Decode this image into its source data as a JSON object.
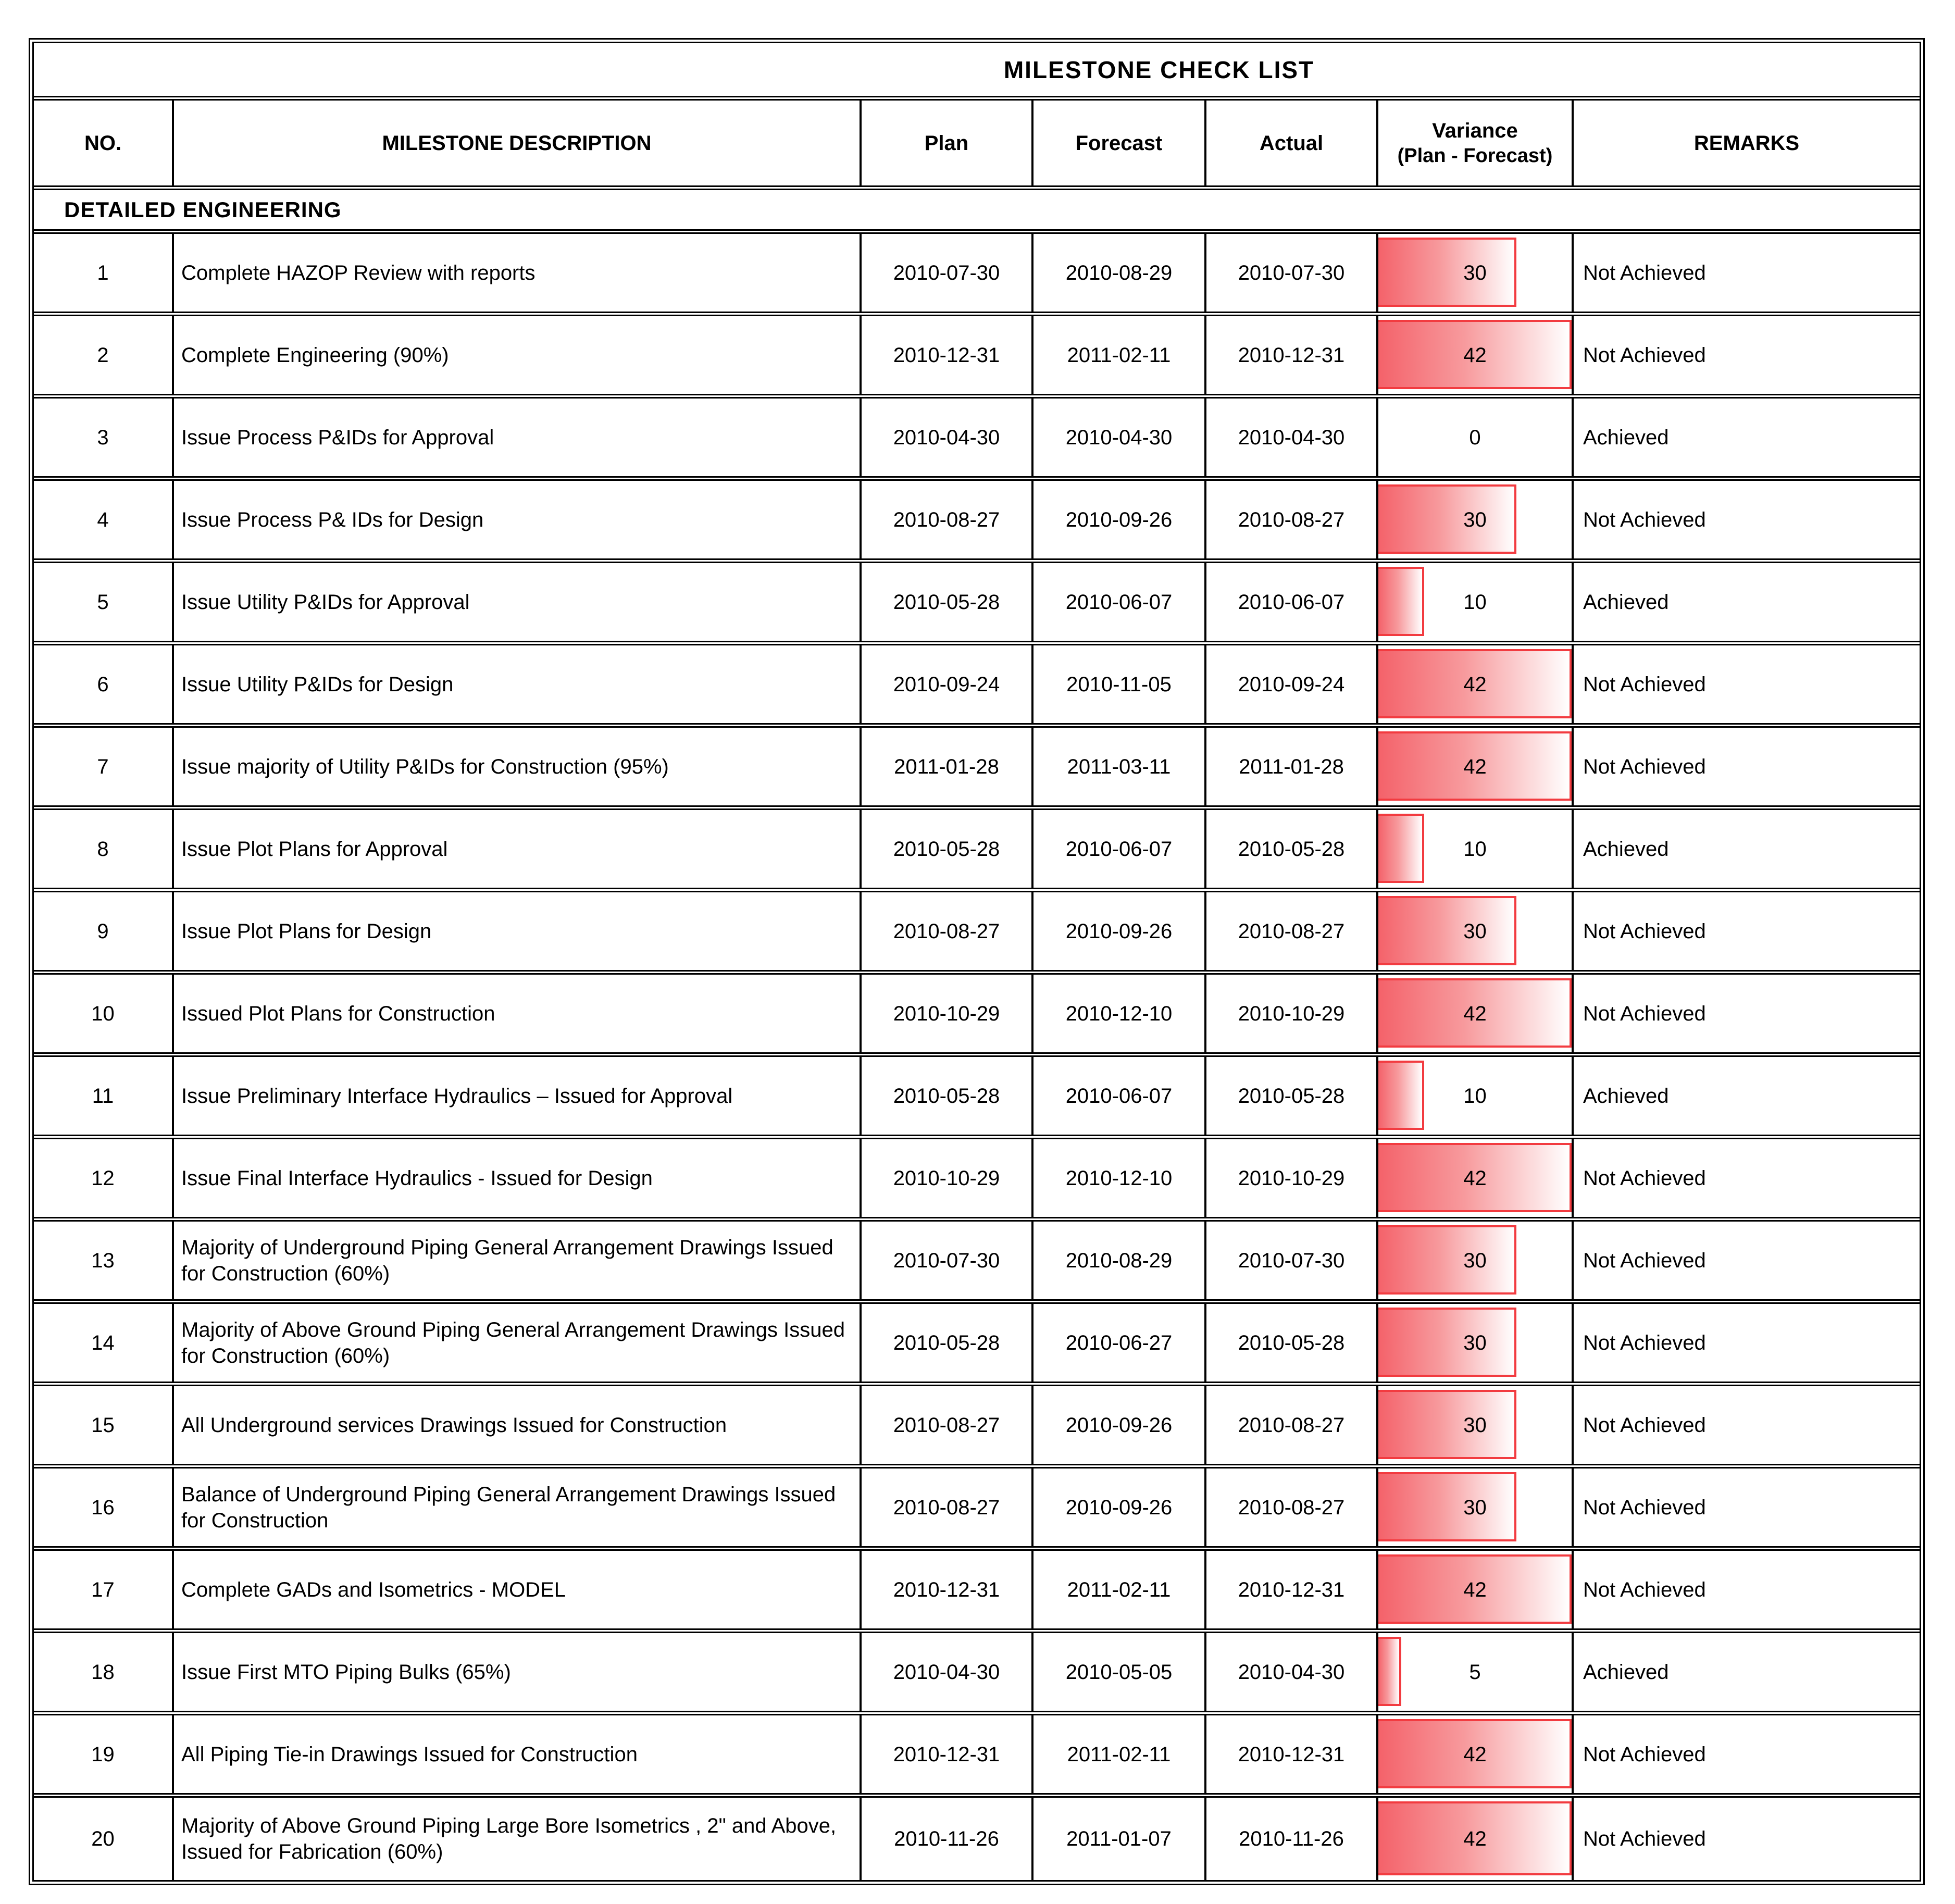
{
  "title": "MILESTONE CHECK LIST",
  "columns": {
    "no": "NO.",
    "description": "MILESTONE DESCRIPTION",
    "plan": "Plan",
    "forecast": "Forecast",
    "actual": "Actual",
    "variance_line1": "Variance",
    "variance_line2": "(Plan - Forecast)",
    "remarks": "REMARKS"
  },
  "section": {
    "label": "DETAILED ENGINEERING"
  },
  "colors": {
    "bar_fill_red": "#f4626a",
    "bar_border_red": "#f23b40",
    "border_black": "#000000"
  },
  "rows": [
    {
      "no": "1",
      "description": "Complete HAZOP Review with reports",
      "plan": "2010-07-30",
      "forecast": "2010-08-29",
      "actual": "2010-07-30",
      "variance": 30,
      "remarks": "Not Achieved"
    },
    {
      "no": "2",
      "description": "Complete Engineering (90%)",
      "plan": "2010-12-31",
      "forecast": "2011-02-11",
      "actual": "2010-12-31",
      "variance": 42,
      "remarks": "Not Achieved"
    },
    {
      "no": "3",
      "description": "Issue Process P&IDs for Approval",
      "plan": "2010-04-30",
      "forecast": "2010-04-30",
      "actual": "2010-04-30",
      "variance": 0,
      "remarks": "Achieved"
    },
    {
      "no": "4",
      "description": "Issue Process P& IDs for Design",
      "plan": "2010-08-27",
      "forecast": "2010-09-26",
      "actual": "2010-08-27",
      "variance": 30,
      "remarks": "Not Achieved"
    },
    {
      "no": "5",
      "description": "Issue Utility P&IDs for Approval",
      "plan": "2010-05-28",
      "forecast": "2010-06-07",
      "actual": "2010-06-07",
      "variance": 10,
      "remarks": "Achieved"
    },
    {
      "no": "6",
      "description": "Issue Utility P&IDs for Design",
      "plan": "2010-09-24",
      "forecast": "2010-11-05",
      "actual": "2010-09-24",
      "variance": 42,
      "remarks": "Not Achieved"
    },
    {
      "no": "7",
      "description": "Issue majority of Utility P&IDs for Construction (95%)",
      "plan": "2011-01-28",
      "forecast": "2011-03-11",
      "actual": "2011-01-28",
      "variance": 42,
      "remarks": "Not Achieved"
    },
    {
      "no": "8",
      "description": "Issue Plot Plans for Approval",
      "plan": "2010-05-28",
      "forecast": "2010-06-07",
      "actual": "2010-05-28",
      "variance": 10,
      "remarks": "Achieved"
    },
    {
      "no": "9",
      "description": "Issue Plot Plans for Design",
      "plan": "2010-08-27",
      "forecast": "2010-09-26",
      "actual": "2010-08-27",
      "variance": 30,
      "remarks": "Not Achieved"
    },
    {
      "no": "10",
      "description": "Issued Plot Plans for Construction",
      "plan": "2010-10-29",
      "forecast": "2010-12-10",
      "actual": "2010-10-29",
      "variance": 42,
      "remarks": "Not Achieved"
    },
    {
      "no": "11",
      "description": "Issue Preliminary Interface Hydraulics – Issued for Approval",
      "plan": "2010-05-28",
      "forecast": "2010-06-07",
      "actual": "2010-05-28",
      "variance": 10,
      "remarks": "Achieved"
    },
    {
      "no": "12",
      "description": "Issue Final Interface Hydraulics - Issued for Design",
      "plan": "2010-10-29",
      "forecast": "2010-12-10",
      "actual": "2010-10-29",
      "variance": 42,
      "remarks": "Not Achieved"
    },
    {
      "no": "13",
      "description": "Majority of Underground Piping General Arrangement Drawings Issued for Construction (60%)",
      "plan": "2010-07-30",
      "forecast": "2010-08-29",
      "actual": "2010-07-30",
      "variance": 30,
      "remarks": "Not Achieved"
    },
    {
      "no": "14",
      "description": "Majority of Above Ground Piping General Arrangement Drawings Issued for Construction (60%)",
      "plan": "2010-05-28",
      "forecast": "2010-06-27",
      "actual": "2010-05-28",
      "variance": 30,
      "remarks": "Not Achieved"
    },
    {
      "no": "15",
      "description": "All Underground services Drawings Issued for Construction",
      "plan": "2010-08-27",
      "forecast": "2010-09-26",
      "actual": "2010-08-27",
      "variance": 30,
      "remarks": "Not Achieved"
    },
    {
      "no": "16",
      "description": "Balance of Underground Piping General Arrangement Drawings Issued for Construction",
      "plan": "2010-08-27",
      "forecast": "2010-09-26",
      "actual": "2010-08-27",
      "variance": 30,
      "remarks": "Not Achieved"
    },
    {
      "no": "17",
      "description": "Complete GADs and Isometrics - MODEL",
      "plan": "2010-12-31",
      "forecast": "2011-02-11",
      "actual": "2010-12-31",
      "variance": 42,
      "remarks": "Not Achieved"
    },
    {
      "no": "18",
      "description": "Issue First MTO Piping Bulks (65%)",
      "plan": "2010-04-30",
      "forecast": "2010-05-05",
      "actual": "2010-04-30",
      "variance": 5,
      "remarks": "Achieved"
    },
    {
      "no": "19",
      "description": "All Piping Tie-in Drawings Issued for Construction",
      "plan": "2010-12-31",
      "forecast": "2011-02-11",
      "actual": "2010-12-31",
      "variance": 42,
      "remarks": "Not Achieved"
    },
    {
      "no": "20",
      "description": "Majority of Above Ground Piping Large Bore Isometrics , 2\" and Above, Issued for Fabrication (60%)",
      "plan": "2010-11-26",
      "forecast": "2011-01-07",
      "actual": "2010-11-26",
      "variance": 42,
      "remarks": "Not Achieved"
    }
  ]
}
